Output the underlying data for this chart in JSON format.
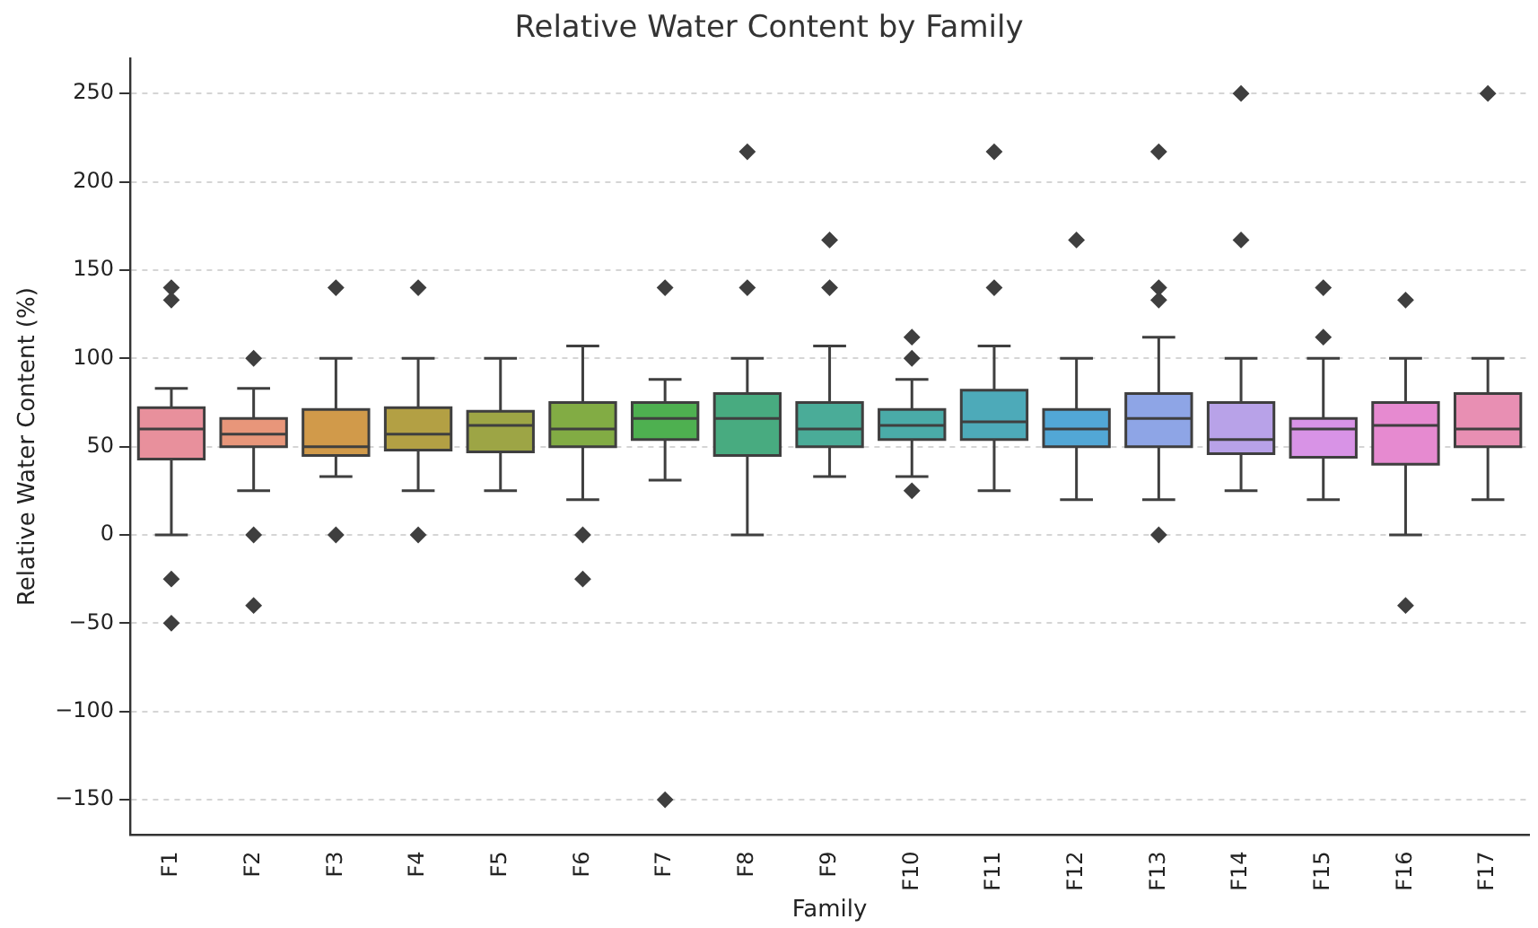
{
  "chart_data": {
    "type": "box",
    "title": "Relative Water Content by Family",
    "xlabel": "Family",
    "ylabel": "Relative Water Content (%)",
    "categories": [
      "F1",
      "F2",
      "F3",
      "F4",
      "F5",
      "F6",
      "F7",
      "F8",
      "F9",
      "F10",
      "F11",
      "F12",
      "F13",
      "F14",
      "F15",
      "F16",
      "F17"
    ],
    "colors": [
      "#e8909c",
      "#e8967a",
      "#d19a4a",
      "#b3a044",
      "#9da545",
      "#82ac44",
      "#4eb050",
      "#48ab80",
      "#4aac98",
      "#4aaba8",
      "#4daab9",
      "#52a7d6",
      "#8ea5e6",
      "#b8a2e8",
      "#d893e6",
      "#e68ad0",
      "#e88fb3"
    ],
    "boxes": [
      {
        "low": 0,
        "q1": 43,
        "median": 60,
        "q3": 72,
        "high": 83,
        "outliers": [
          140,
          133,
          -25,
          -50
        ]
      },
      {
        "low": 25,
        "q1": 50,
        "median": 57,
        "q3": 66,
        "high": 83,
        "outliers": [
          100,
          0,
          -40
        ]
      },
      {
        "low": 33,
        "q1": 45,
        "median": 50,
        "q3": 71,
        "high": 100,
        "outliers": [
          140,
          0
        ]
      },
      {
        "low": 25,
        "q1": 48,
        "median": 57,
        "q3": 72,
        "high": 100,
        "outliers": [
          140,
          0
        ]
      },
      {
        "low": 25,
        "q1": 47,
        "median": 62,
        "q3": 70,
        "high": 100
      },
      {
        "low": 20,
        "q1": 50,
        "median": 60,
        "q3": 75,
        "high": 107,
        "outliers": [
          0,
          -25
        ]
      },
      {
        "low": 31,
        "q1": 54,
        "median": 66,
        "q3": 75,
        "high": 88,
        "outliers": [
          140,
          -150
        ]
      },
      {
        "low": 0,
        "q1": 45,
        "median": 66,
        "q3": 80,
        "high": 100,
        "outliers": [
          217,
          140
        ]
      },
      {
        "low": 33,
        "q1": 50,
        "median": 60,
        "q3": 75,
        "high": 107,
        "outliers": [
          167,
          140
        ]
      },
      {
        "low": 33,
        "q1": 54,
        "median": 62,
        "q3": 71,
        "high": 88,
        "outliers": [
          112,
          100,
          25
        ]
      },
      {
        "low": 25,
        "q1": 54,
        "median": 64,
        "q3": 82,
        "high": 107,
        "outliers": [
          217,
          140
        ]
      },
      {
        "low": 20,
        "q1": 50,
        "median": 60,
        "q3": 71,
        "high": 100,
        "outliers": [
          167
        ]
      },
      {
        "low": 20,
        "q1": 50,
        "median": 66,
        "q3": 80,
        "high": 112,
        "outliers": [
          217,
          140,
          133,
          0
        ]
      },
      {
        "low": 25,
        "q1": 46,
        "median": 54,
        "q3": 75,
        "high": 100,
        "outliers": [
          250,
          167
        ]
      },
      {
        "low": 20,
        "q1": 44,
        "median": 60,
        "q3": 66,
        "high": 100,
        "outliers": [
          140,
          112
        ]
      },
      {
        "low": 0,
        "q1": 40,
        "median": 62,
        "q3": 75,
        "high": 100,
        "outliers": [
          133,
          -40
        ]
      },
      {
        "low": 20,
        "q1": 50,
        "median": 60,
        "q3": 80,
        "high": 100,
        "outliers": [
          250
        ]
      }
    ],
    "ylim": [
      -170,
      270
    ],
    "yticks": [
      {
        "value": -150,
        "label": "−150"
      },
      {
        "value": -100,
        "label": "−100"
      },
      {
        "value": -50,
        "label": "−50"
      },
      0,
      50,
      100,
      150,
      200,
      250
    ],
    "grid": "y"
  }
}
